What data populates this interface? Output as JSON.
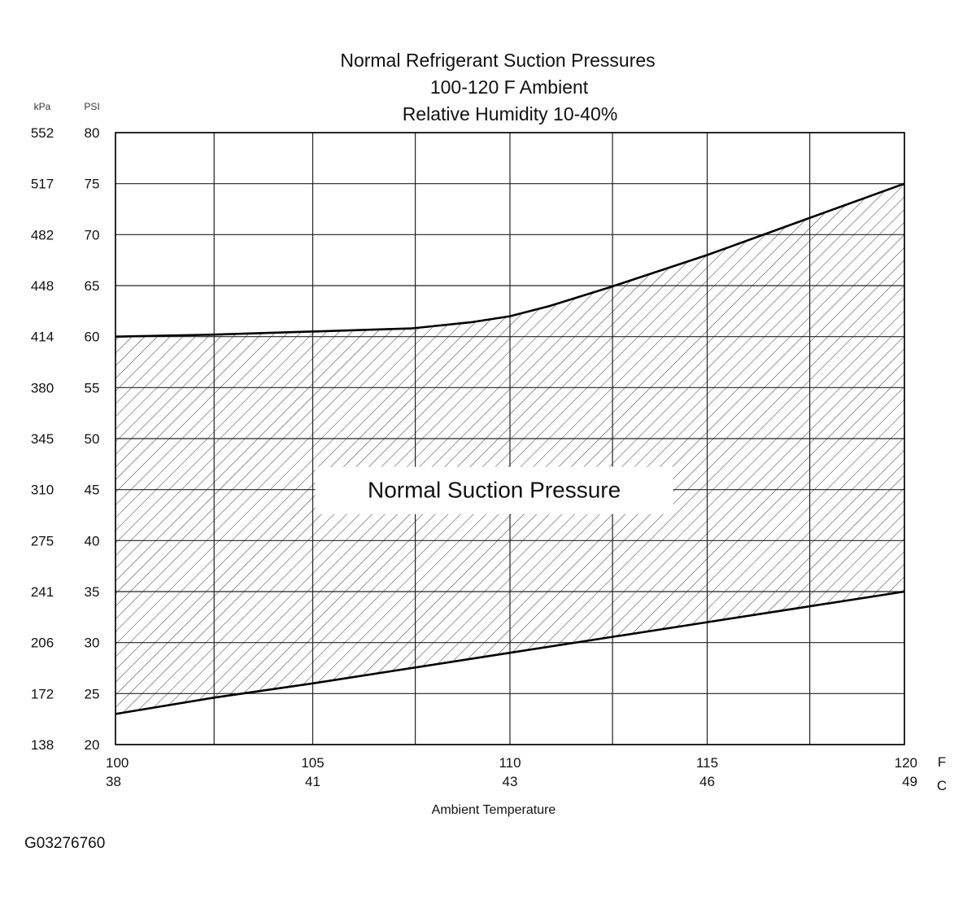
{
  "chart_data": {
    "type": "area",
    "title": [
      "Normal  Refrigerant  Suction  Pressures",
      "100-120 F Ambient",
      "Relative Humidity 10-40%"
    ],
    "xlabel": "Ambient Temperature",
    "x_unit_primary": "F",
    "x_unit_secondary": "C",
    "x_ticks": [
      {
        "f": "100",
        "c": "38",
        "value": 100
      },
      {
        "f": "105",
        "c": "41",
        "value": 105
      },
      {
        "f": "110",
        "c": "43",
        "value": 110
      },
      {
        "f": "115",
        "c": "46",
        "value": 115
      },
      {
        "f": "120",
        "c": "49",
        "value": 120
      }
    ],
    "xlim": [
      100,
      120
    ],
    "x_gridlines": [
      100,
      102.5,
      105,
      107.6,
      110,
      112.6,
      115,
      117.6,
      120
    ],
    "y_unit_kpa": "kPa",
    "y_unit_psi": "PSI",
    "y_ticks": [
      {
        "psi": "80",
        "kpa": "552",
        "value": 80
      },
      {
        "psi": "75",
        "kpa": "517",
        "value": 75
      },
      {
        "psi": "70",
        "kpa": "482",
        "value": 70
      },
      {
        "psi": "65",
        "kpa": "448",
        "value": 65
      },
      {
        "psi": "60",
        "kpa": "414",
        "value": 60
      },
      {
        "psi": "55",
        "kpa": "380",
        "value": 55
      },
      {
        "psi": "50",
        "kpa": "345",
        "value": 50
      },
      {
        "psi": "45",
        "kpa": "310",
        "value": 45
      },
      {
        "psi": "40",
        "kpa": "275",
        "value": 40
      },
      {
        "psi": "35",
        "kpa": "241",
        "value": 35
      },
      {
        "psi": "30",
        "kpa": "206",
        "value": 30
      },
      {
        "psi": "25",
        "kpa": "172",
        "value": 25
      },
      {
        "psi": "20",
        "kpa": "138",
        "value": 20
      }
    ],
    "ylim": [
      20,
      80
    ],
    "grid": true,
    "series": [
      {
        "role": "upper",
        "x": [
          100,
          102.5,
          105,
          107.5,
          109,
          110,
          111,
          112.5,
          115,
          117.5,
          120
        ],
        "y": [
          60,
          60.2,
          60.5,
          60.8,
          61.4,
          62,
          63,
          64.8,
          68,
          71.5,
          75
        ]
      },
      {
        "role": "lower",
        "x": [
          100,
          102.5,
          105,
          107.5,
          110,
          112.5,
          115,
          117.5,
          120
        ],
        "y": [
          23,
          24.6,
          26,
          27.5,
          29,
          30.5,
          32,
          33.5,
          35
        ]
      }
    ],
    "band_label": "Normal Suction Pressure",
    "colors": {
      "line": "#000000",
      "grid": "#222222",
      "hatch": "#555555"
    }
  },
  "figure_id": "G03276760"
}
